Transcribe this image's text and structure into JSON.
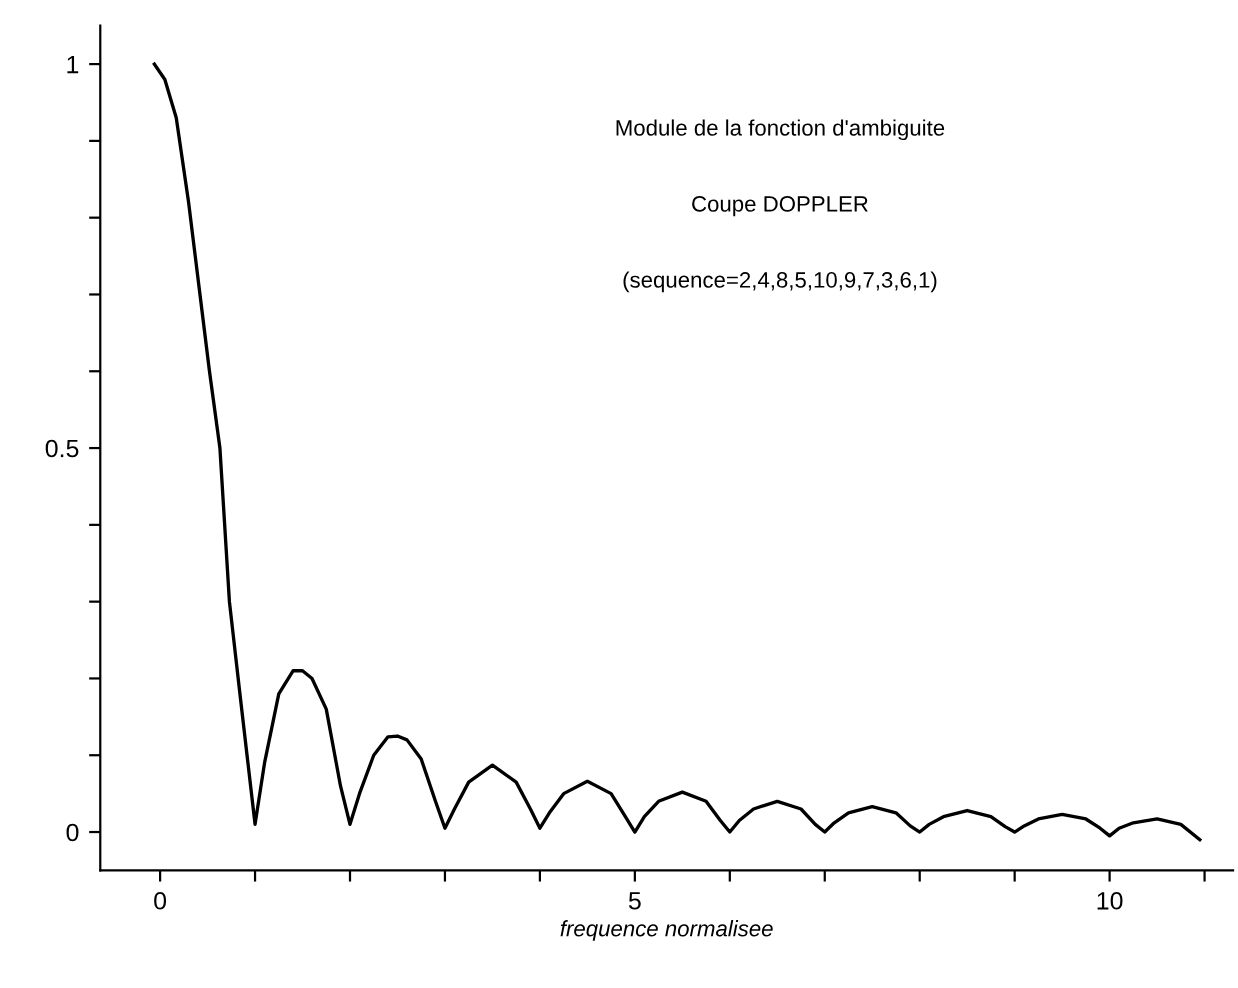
{
  "chart_data": {
    "type": "line",
    "title": "Module de la fonction d'ambiguite",
    "subtitle": "Coupe DOPPLER",
    "xlabel": "frequence normalisee",
    "annotations": [
      "(sequence=2,4,8,5,10,9,7,3,6,1)"
    ],
    "series": [
      {
        "color": "#000000",
        "x": [
          -0.06,
          0.05,
          0.17,
          0.3,
          0.42,
          0.52,
          0.63,
          0.73,
          0.85,
          1.0,
          1.1,
          1.25,
          1.4,
          1.5,
          1.6,
          1.75,
          1.9,
          2.0,
          2.1,
          2.25,
          2.4,
          2.5,
          2.6,
          2.75,
          2.9,
          3.0,
          3.1,
          3.25,
          3.5,
          3.75,
          3.9,
          4.0,
          4.1,
          4.25,
          4.5,
          4.75,
          4.9,
          5.0,
          5.1,
          5.25,
          5.5,
          5.75,
          5.9,
          6.0,
          6.1,
          6.25,
          6.5,
          6.75,
          6.9,
          7.0,
          7.1,
          7.25,
          7.5,
          7.75,
          7.9,
          8.0,
          8.1,
          8.25,
          8.5,
          8.75,
          8.9,
          9.0,
          9.1,
          9.25,
          9.5,
          9.75,
          9.9,
          10.0,
          10.1,
          10.25,
          10.5,
          10.75,
          10.95
        ],
        "values": [
          1.0,
          0.98,
          0.93,
          0.82,
          0.7,
          0.6,
          0.5,
          0.3,
          0.17,
          0.01,
          0.09,
          0.18,
          0.21,
          0.21,
          0.2,
          0.16,
          0.06,
          0.01,
          0.05,
          0.1,
          0.124,
          0.125,
          0.12,
          0.095,
          0.04,
          0.005,
          0.03,
          0.065,
          0.087,
          0.065,
          0.03,
          0.005,
          0.025,
          0.05,
          0.066,
          0.05,
          0.02,
          0.0,
          0.02,
          0.04,
          0.052,
          0.04,
          0.015,
          0.0,
          0.015,
          0.03,
          0.04,
          0.03,
          0.01,
          0.0,
          0.012,
          0.025,
          0.033,
          0.025,
          0.008,
          0.0,
          0.01,
          0.02,
          0.028,
          0.02,
          0.007,
          0.0,
          0.008,
          0.017,
          0.023,
          0.017,
          0.005,
          -0.005,
          0.005,
          0.012,
          0.017,
          0.01,
          -0.01
        ]
      }
    ],
    "xlim": [
      -0.63,
      11.3
    ],
    "ylim": [
      -0.05,
      1.05
    ],
    "xticks": [
      0,
      {
        "value": 1,
        "label": null
      },
      {
        "value": 2,
        "label": null
      },
      {
        "value": 3,
        "label": null
      },
      {
        "value": 4,
        "label": null
      },
      5,
      {
        "value": 6,
        "label": null
      },
      {
        "value": 7,
        "label": null
      },
      {
        "value": 8,
        "label": null
      },
      {
        "value": 9,
        "label": null
      },
      10,
      {
        "value": 11,
        "label": null
      }
    ],
    "yticks": [
      0,
      {
        "value": 0.1,
        "label": null
      },
      {
        "value": 0.2,
        "label": null
      },
      {
        "value": 0.3,
        "label": null
      },
      {
        "value": 0.4,
        "label": null
      },
      0.5,
      {
        "value": 0.6,
        "label": null
      },
      {
        "value": 0.7,
        "label": null
      },
      {
        "value": 0.8,
        "label": null
      },
      {
        "value": 0.9,
        "label": null
      },
      1
    ],
    "grid": false,
    "legend": false,
    "marker": "none",
    "line_style": "solid"
  }
}
